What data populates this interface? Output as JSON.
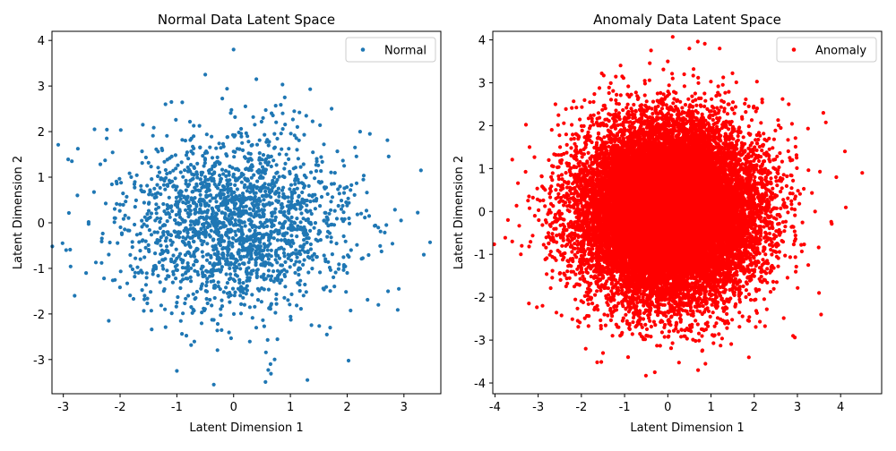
{
  "chart_data": [
    {
      "type": "scatter",
      "title": "Normal Data Latent Space",
      "xlabel": "Latent Dimension 1",
      "ylabel": "Latent Dimension 2",
      "xlim": [
        -3.2,
        3.65
      ],
      "ylim": [
        -3.75,
        4.2
      ],
      "xticks": [
        -3,
        -2,
        -1,
        0,
        1,
        2,
        3
      ],
      "yticks": [
        -3,
        -2,
        -1,
        0,
        1,
        2,
        3,
        4
      ],
      "grid": false,
      "legend_position": "top-right",
      "series": [
        {
          "name": "Normal",
          "color": "#1f77b4",
          "approx_point_count": 2000,
          "distribution": "bivariate standard normal, mean (0, 0), sd 1",
          "points": [
            [
              0.0,
              3.8
            ],
            [
              -0.5,
              3.25
            ],
            [
              0.4,
              3.15
            ],
            [
              -2.45,
              2.05
            ],
            [
              -2.85,
              1.35
            ],
            [
              -2.8,
              -1.6
            ],
            [
              -2.2,
              -2.15
            ],
            [
              3.3,
              1.15
            ],
            [
              3.35,
              -0.7
            ],
            [
              2.4,
              1.95
            ],
            [
              2.55,
              -1.8
            ],
            [
              1.3,
              -3.45
            ],
            [
              -0.35,
              -3.55
            ],
            [
              -1.0,
              -3.25
            ],
            [
              0.65,
              -3.1
            ],
            [
              -2.95,
              -0.6
            ],
            [
              2.95,
              0.05
            ],
            [
              -1.6,
              2.15
            ],
            [
              1.7,
              -2.3
            ],
            [
              0.9,
              2.75
            ],
            [
              -1.2,
              2.6
            ],
            [
              2.0,
              -1.1
            ],
            [
              -2.0,
              0.4
            ],
            [
              1.5,
              0.9
            ],
            [
              -0.8,
              -1.6
            ],
            [
              0.3,
              0.2
            ],
            [
              -0.2,
              -0.4
            ],
            [
              0.6,
              -0.6
            ],
            [
              -0.6,
              0.7
            ],
            [
              1.1,
              0.3
            ]
          ]
        }
      ]
    },
    {
      "type": "scatter",
      "title": "Anomaly Data Latent Space",
      "xlabel": "Latent Dimension 1",
      "ylabel": "Latent Dimension 2",
      "xlim": [
        -4.05,
        4.95
      ],
      "ylim": [
        -4.25,
        4.2
      ],
      "xticks": [
        -4,
        -3,
        -2,
        -1,
        0,
        1,
        2,
        3,
        4
      ],
      "yticks": [
        -4,
        -3,
        -2,
        -1,
        0,
        1,
        2,
        3,
        4
      ],
      "grid": false,
      "legend_position": "top-right",
      "series": [
        {
          "name": "Anomaly",
          "color": "#ff0000",
          "approx_point_count": 20000,
          "distribution": "bivariate standard normal, mean (0, 0), sd 1",
          "points": [
            [
              4.5,
              0.9
            ],
            [
              4.1,
              1.4
            ],
            [
              3.9,
              0.8
            ],
            [
              -3.7,
              -0.2
            ],
            [
              -3.6,
              -0.7
            ],
            [
              -3.4,
              -1.0
            ],
            [
              0.5,
              3.8
            ],
            [
              1.2,
              3.8
            ],
            [
              -0.3,
              -3.75
            ],
            [
              0.7,
              -3.7
            ],
            [
              3.5,
              -1.9
            ],
            [
              -3.2,
              1.5
            ],
            [
              2.9,
              -2.9
            ],
            [
              -1.5,
              -3.3
            ],
            [
              3.6,
              2.3
            ],
            [
              -2.6,
              2.5
            ],
            [
              2.8,
              2.5
            ],
            [
              -2.9,
              -2.2
            ],
            [
              0.0,
              3.5
            ],
            [
              -1.9,
              -3.2
            ]
          ]
        }
      ]
    }
  ]
}
